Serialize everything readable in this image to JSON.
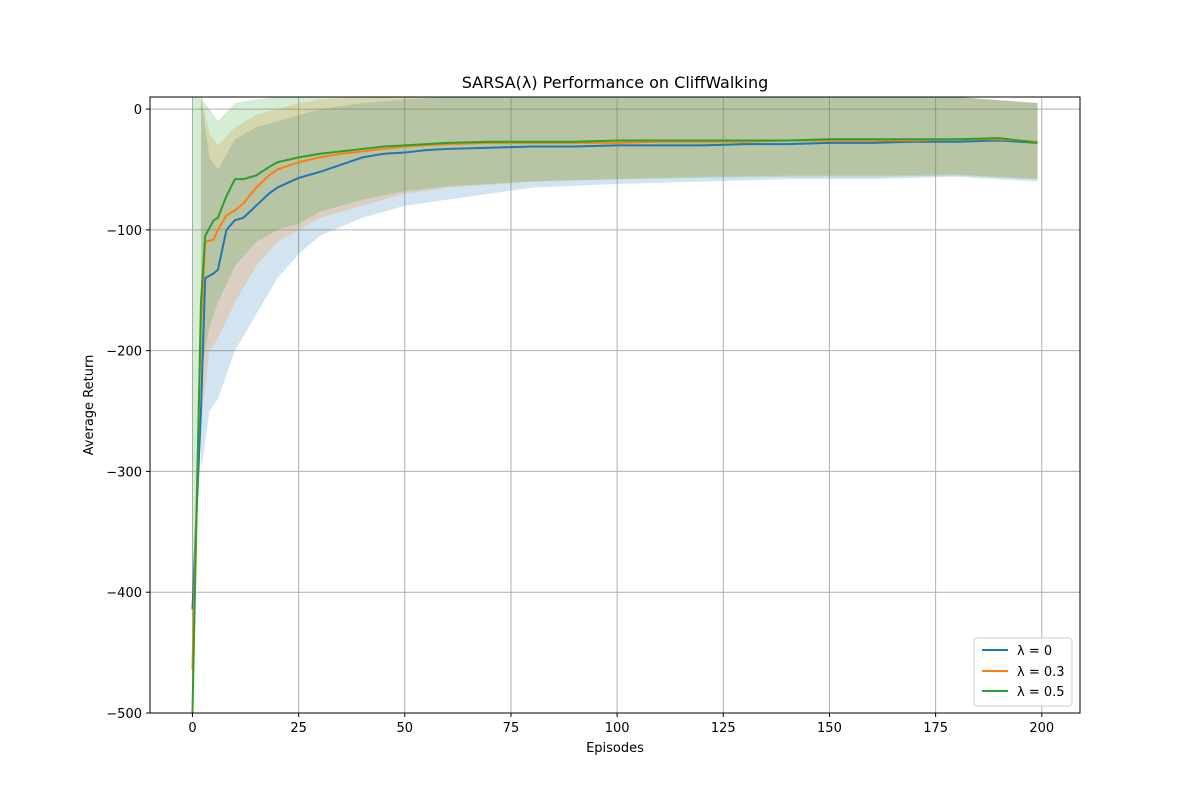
{
  "chart_data": {
    "type": "line",
    "title": "SARSA(λ) Performance on CliffWalking",
    "xlabel": "Episodes",
    "ylabel": "Average Return",
    "xlim": [
      -10,
      209
    ],
    "ylim": [
      -500,
      10
    ],
    "xticks": [
      0,
      25,
      50,
      75,
      100,
      125,
      150,
      175,
      200
    ],
    "yticks": [
      0,
      -100,
      -200,
      -300,
      -400,
      -500
    ],
    "ytick_labels": [
      "0",
      "−100",
      "−200",
      "−300",
      "−400",
      "−500"
    ],
    "grid": true,
    "legend_position": "lower-right",
    "series": [
      {
        "name": "λ = 0",
        "color": "#1f77b4",
        "points": [
          [
            0,
            -414
          ],
          [
            2,
            -250
          ],
          [
            3,
            -140
          ],
          [
            5,
            -136
          ],
          [
            6,
            -133
          ],
          [
            8,
            -100
          ],
          [
            10,
            -92
          ],
          [
            12,
            -90
          ],
          [
            15,
            -80
          ],
          [
            18,
            -70
          ],
          [
            20,
            -65
          ],
          [
            25,
            -57
          ],
          [
            30,
            -52
          ],
          [
            35,
            -46
          ],
          [
            40,
            -40
          ],
          [
            45,
            -37
          ],
          [
            50,
            -36
          ],
          [
            55,
            -34
          ],
          [
            60,
            -33
          ],
          [
            70,
            -32
          ],
          [
            80,
            -31
          ],
          [
            90,
            -31
          ],
          [
            100,
            -30
          ],
          [
            110,
            -30
          ],
          [
            120,
            -30
          ],
          [
            130,
            -29
          ],
          [
            140,
            -29
          ],
          [
            150,
            -28
          ],
          [
            160,
            -28
          ],
          [
            170,
            -27
          ],
          [
            180,
            -27
          ],
          [
            190,
            -26
          ],
          [
            199,
            -28
          ]
        ],
        "band": [
          [
            2,
            -300,
            10
          ],
          [
            4,
            -250,
            -40
          ],
          [
            6,
            -240,
            -50
          ],
          [
            10,
            -200,
            -25
          ],
          [
            15,
            -170,
            -15
          ],
          [
            20,
            -140,
            -10
          ],
          [
            25,
            -120,
            -5
          ],
          [
            30,
            -105,
            0
          ],
          [
            40,
            -90,
            5
          ],
          [
            50,
            -80,
            8
          ],
          [
            60,
            -75,
            10
          ],
          [
            70,
            -70,
            10
          ],
          [
            80,
            -65,
            10
          ],
          [
            100,
            -62,
            10
          ],
          [
            120,
            -60,
            10
          ],
          [
            140,
            -58,
            10
          ],
          [
            160,
            -58,
            10
          ],
          [
            180,
            -56,
            10
          ],
          [
            199,
            -60,
            5
          ]
        ]
      },
      {
        "name": "λ = 0.3",
        "color": "#ff7f0e",
        "points": [
          [
            0,
            -464
          ],
          [
            2,
            -180
          ],
          [
            3,
            -110
          ],
          [
            5,
            -108
          ],
          [
            6,
            -100
          ],
          [
            8,
            -88
          ],
          [
            10,
            -84
          ],
          [
            12,
            -78
          ],
          [
            15,
            -65
          ],
          [
            18,
            -55
          ],
          [
            20,
            -50
          ],
          [
            25,
            -44
          ],
          [
            30,
            -40
          ],
          [
            35,
            -37
          ],
          [
            40,
            -35
          ],
          [
            45,
            -33
          ],
          [
            50,
            -31
          ],
          [
            55,
            -30
          ],
          [
            60,
            -29
          ],
          [
            70,
            -28
          ],
          [
            80,
            -28
          ],
          [
            90,
            -28
          ],
          [
            100,
            -28
          ],
          [
            110,
            -27
          ],
          [
            120,
            -27
          ],
          [
            130,
            -27
          ],
          [
            140,
            -26
          ],
          [
            150,
            -26
          ],
          [
            160,
            -26
          ],
          [
            170,
            -26
          ],
          [
            180,
            -25
          ],
          [
            190,
            -25
          ],
          [
            199,
            -27
          ]
        ],
        "band": [
          [
            2,
            -260,
            10
          ],
          [
            4,
            -200,
            -20
          ],
          [
            6,
            -190,
            -30
          ],
          [
            10,
            -160,
            -15
          ],
          [
            15,
            -130,
            -5
          ],
          [
            20,
            -110,
            0
          ],
          [
            25,
            -100,
            5
          ],
          [
            30,
            -90,
            8
          ],
          [
            40,
            -80,
            10
          ],
          [
            50,
            -70,
            10
          ],
          [
            60,
            -65,
            10
          ],
          [
            80,
            -60,
            10
          ],
          [
            100,
            -58,
            10
          ],
          [
            120,
            -56,
            10
          ],
          [
            140,
            -55,
            10
          ],
          [
            160,
            -55,
            10
          ],
          [
            180,
            -54,
            10
          ],
          [
            199,
            -58,
            5
          ]
        ]
      },
      {
        "name": "λ = 0.5",
        "color": "#2ca02c",
        "points": [
          [
            0,
            -500
          ],
          [
            2,
            -160
          ],
          [
            3,
            -105
          ],
          [
            5,
            -92
          ],
          [
            6,
            -90
          ],
          [
            8,
            -72
          ],
          [
            10,
            -58
          ],
          [
            12,
            -58
          ],
          [
            15,
            -55
          ],
          [
            18,
            -48
          ],
          [
            20,
            -44
          ],
          [
            25,
            -40
          ],
          [
            30,
            -37
          ],
          [
            35,
            -35
          ],
          [
            40,
            -33
          ],
          [
            45,
            -31
          ],
          [
            50,
            -30
          ],
          [
            55,
            -29
          ],
          [
            60,
            -28
          ],
          [
            70,
            -27
          ],
          [
            80,
            -27
          ],
          [
            90,
            -27
          ],
          [
            100,
            -26
          ],
          [
            110,
            -26
          ],
          [
            120,
            -26
          ],
          [
            130,
            -26
          ],
          [
            140,
            -26
          ],
          [
            150,
            -25
          ],
          [
            160,
            -25
          ],
          [
            170,
            -25
          ],
          [
            180,
            -25
          ],
          [
            190,
            -24
          ],
          [
            199,
            -28
          ]
        ],
        "band": [
          [
            0,
            -500,
            10
          ],
          [
            2,
            -220,
            10
          ],
          [
            4,
            -180,
            0
          ],
          [
            6,
            -160,
            -10
          ],
          [
            10,
            -130,
            5
          ],
          [
            15,
            -110,
            8
          ],
          [
            20,
            -100,
            10
          ],
          [
            25,
            -95,
            10
          ],
          [
            30,
            -85,
            10
          ],
          [
            40,
            -75,
            10
          ],
          [
            50,
            -68,
            10
          ],
          [
            60,
            -64,
            10
          ],
          [
            80,
            -60,
            10
          ],
          [
            100,
            -58,
            10
          ],
          [
            120,
            -57,
            10
          ],
          [
            140,
            -56,
            10
          ],
          [
            160,
            -56,
            10
          ],
          [
            180,
            -55,
            10
          ],
          [
            199,
            -58,
            5
          ]
        ]
      }
    ]
  }
}
